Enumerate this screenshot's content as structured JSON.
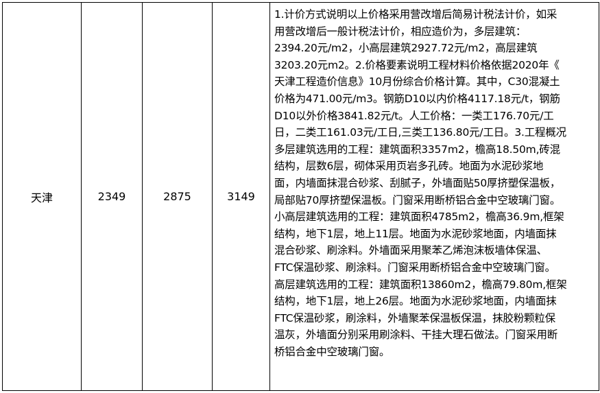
{
  "row": {
    "city": "天津",
    "multi_storey": "2349",
    "small_high_rise": "2875",
    "high_rise": "3149",
    "description_lines": [
      "1.计价方式说明以上价格采用营改增后简易计税法计价，如采",
      "用营改增后一般计税法计价，相应造价为，多层建筑：",
      "2394.20元/m2，小高层建筑2927.72元/m2，高层建筑",
      "3203.20元m2。2.价格要素说明工程材料价格依据2020年《",
      "天津工程造价信息》10月份综合价格计算。其中，C30混凝土",
      "价格为471.00元/m3。钢筋D10以内价格4117.18元/t，钢筋",
      "D10以外价格3841.82元/t。人工价格：一类工176.70元/工",
      "日，二类工161.03元/工日,三类工136.80元/工日。3.工程概况",
      "多层建筑选用的工程：建筑面积3357m2，檐高18.50m,砖混",
      "结构，层数6层，砌体采用页岩多孔砖。地面为水泥砂浆地",
      "面，内墙面抹混合砂浆、刮腻子，外墙面贴50厚挤塑保温板，",
      "局部贴70厚挤塑保温板。门窗采用断桥铝合金中空玻璃门窗。",
      "小高层建筑选用的工程：建筑面积4785m2，檐高36.9m,框架",
      "结构，地下1层，地上11层。地面为水泥砂浆地面，内墙面抹",
      "混合砂浆、刷涂料。外墙面采用聚苯乙烯泡沫板墙体保温、",
      "FTC保温砂浆、刷涂料。门窗采用断桥铝合金中空玻璃门窗。",
      "高层建筑选用的工程：建筑面积13860m2，檐高79.80m,框架",
      "结构，地下1层，地上26层。地面为水泥砂浆地面，内墙面抹",
      "FTC保温砂浆，刷涂料，外墙聚苯保温板保温，抹胶粉颗粒保",
      "温灰，外墙面分别采用刷涂料、干挂大理石做法。门窗采用断",
      "桥铝合金中空玻璃门窗。"
    ]
  }
}
